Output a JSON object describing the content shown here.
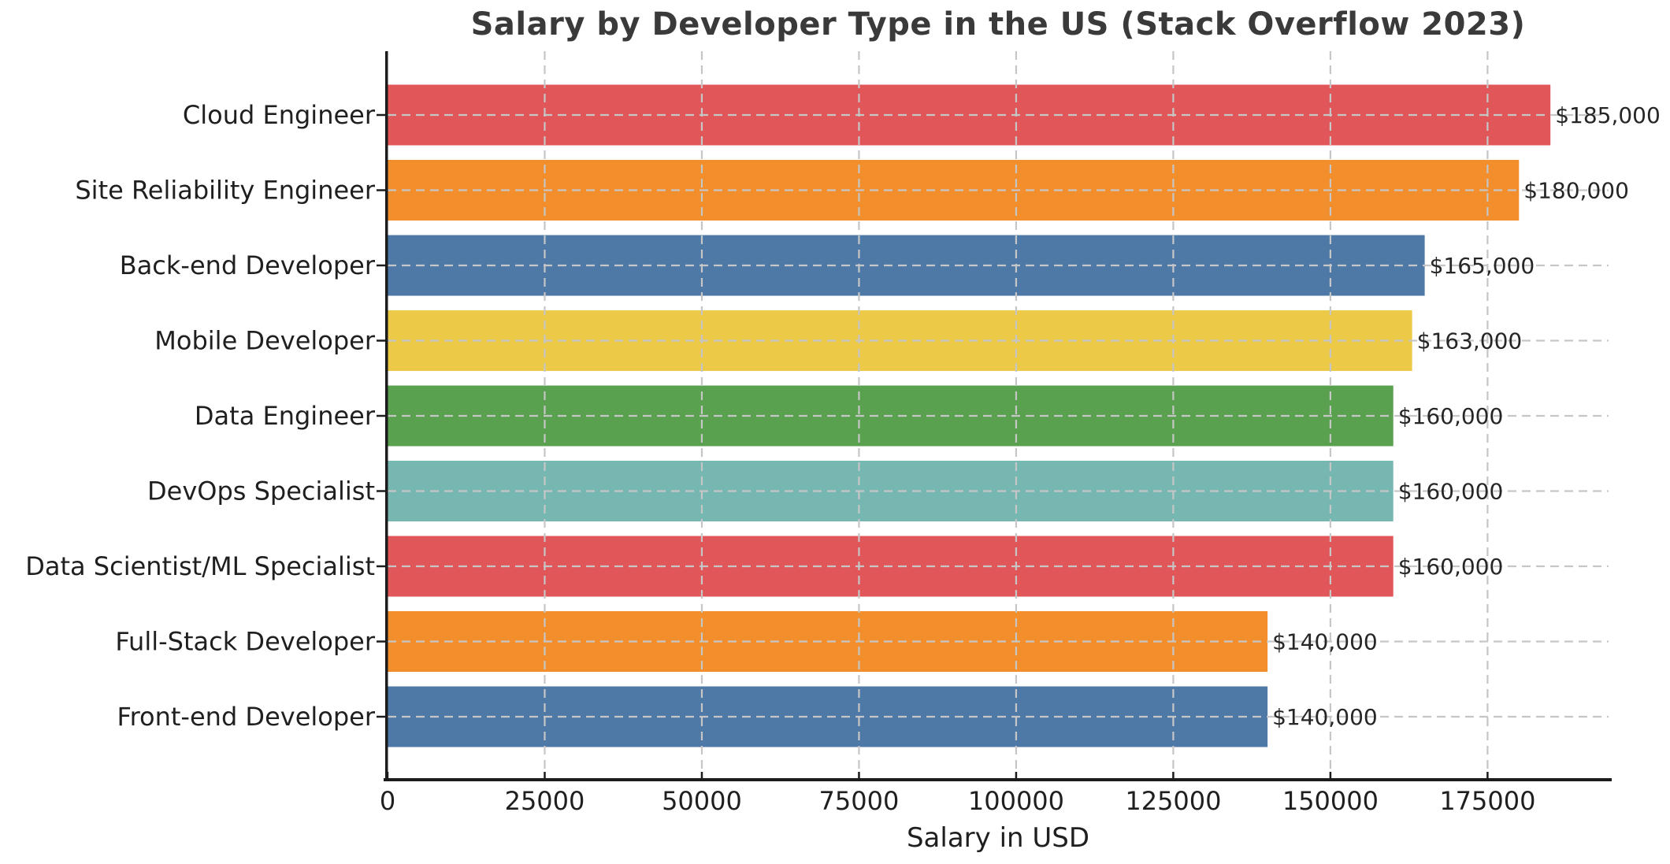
{
  "chart_data": {
    "type": "bar",
    "orientation": "horizontal",
    "title": "Salary by Developer Type in the US (Stack Overflow 2023)",
    "xlabel": "Salary in USD",
    "ylabel": "",
    "categories": [
      "Cloud Engineer",
      "Site Reliability Engineer",
      "Back-end Developer",
      "Mobile Developer",
      "Data Engineer",
      "DevOps Specialist",
      "Data Scientist/ML Specialist",
      "Full-Stack Developer",
      "Front-end Developer"
    ],
    "values": [
      185000,
      180000,
      165000,
      163000,
      160000,
      160000,
      160000,
      140000,
      140000
    ],
    "value_labels": [
      "$185,000",
      "$180,000",
      "$165,000",
      "$163,000",
      "$160,000",
      "$160,000",
      "$160,000",
      "$140,000",
      "$140,000"
    ],
    "bar_colors": [
      "#e15759",
      "#f28e2b",
      "#4e79a7",
      "#edc948",
      "#59a14f",
      "#76b7b2",
      "#e15759",
      "#f28e2b",
      "#4e79a7"
    ],
    "xlim": [
      0,
      194250
    ],
    "xticks": [
      0,
      25000,
      50000,
      75000,
      100000,
      125000,
      150000,
      175000
    ],
    "xtick_labels": [
      "0",
      "25000",
      "50000",
      "75000",
      "100000",
      "125000",
      "150000",
      "175000"
    ],
    "grid": {
      "visible": true,
      "style": "dashed",
      "axes": "both",
      "drawn_over_bars": true
    },
    "style": {
      "background": "#ffffff",
      "grid_color": "#c6c6c6",
      "axis_color": "#1c1c1c",
      "title_color": "#3a3a3a",
      "tick_label_color": "#1f1f1f",
      "value_label_color": "#262626"
    }
  }
}
